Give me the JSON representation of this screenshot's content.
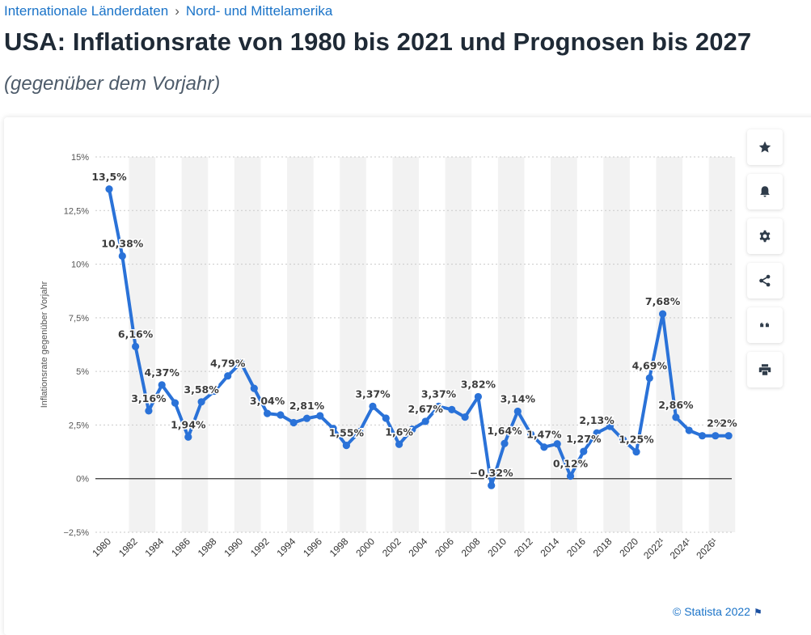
{
  "breadcrumb": {
    "item1": "Internationale Länderdaten",
    "separator": "›",
    "item2": "Nord- und Mittelamerika"
  },
  "title": "USA: Inflationsrate von 1980 bis 2021 und Prognosen bis 2027",
  "subtitle": "(gegenüber dem Vorjahr)",
  "footer": {
    "copyright": "© Statista 2022",
    "flag_icon": "flag-icon"
  },
  "toolbar": [
    "star-icon",
    "bell-icon",
    "gear-icon",
    "share-icon",
    "quote-icon",
    "print-icon"
  ],
  "colors": {
    "line": "#2a72d8",
    "accent": "#1a73c8",
    "band": "#f2f2f2",
    "zero_line": "#333333"
  },
  "chart_data": {
    "type": "line",
    "ylabel": "Inflationsrate gegenüber Vorjahr",
    "ylim": [
      -2.5,
      15
    ],
    "yticks": [
      -2.5,
      0,
      2.5,
      5,
      7.5,
      10,
      12.5,
      15
    ],
    "ytick_labels": [
      "−2,5%",
      "0%",
      "2,5%",
      "5%",
      "7,5%",
      "10%",
      "12,5%",
      "15%"
    ],
    "grid": true,
    "x": [
      1980,
      1981,
      1982,
      1983,
      1984,
      1985,
      1986,
      1987,
      1988,
      1989,
      1990,
      1991,
      1992,
      1993,
      1994,
      1995,
      1996,
      1997,
      1998,
      1999,
      2000,
      2001,
      2002,
      2003,
      2004,
      2005,
      2006,
      2007,
      2008,
      2009,
      2010,
      2011,
      2012,
      2013,
      2014,
      2015,
      2016,
      2017,
      2018,
      2019,
      2020,
      2021,
      2022,
      2023,
      2024,
      2025,
      2026,
      2027
    ],
    "x_tick_labels": [
      "1980",
      "1982",
      "1984",
      "1986",
      "1988",
      "1990",
      "1992",
      "1994",
      "1996",
      "1998",
      "2000",
      "2002",
      "2004",
      "2006",
      "2008",
      "2010",
      "2012",
      "2014",
      "2016",
      "2018",
      "2020",
      "2022¹",
      "2024¹",
      "2026¹"
    ],
    "values": [
      13.5,
      10.38,
      6.16,
      3.16,
      4.37,
      3.53,
      1.94,
      3.58,
      4.08,
      4.79,
      5.4,
      4.21,
      3.04,
      2.97,
      2.61,
      2.81,
      2.93,
      2.34,
      1.55,
      2.19,
      3.37,
      2.82,
      1.6,
      2.3,
      2.67,
      3.37,
      3.22,
      2.87,
      3.82,
      -0.32,
      1.64,
      3.14,
      2.07,
      1.47,
      1.62,
      0.12,
      1.27,
      2.13,
      2.44,
      1.81,
      1.25,
      4.69,
      7.68,
      2.86,
      2.25,
      2.0,
      2.0,
      2.0
    ],
    "data_labels": [
      {
        "year": 1980,
        "text": "13,5%"
      },
      {
        "year": 1981,
        "text": "10,38%"
      },
      {
        "year": 1982,
        "text": "6,16%"
      },
      {
        "year": 1983,
        "text": "3,16%"
      },
      {
        "year": 1984,
        "text": "4,37%"
      },
      {
        "year": 1986,
        "text": "1,94%"
      },
      {
        "year": 1987,
        "text": "3,58%"
      },
      {
        "year": 1989,
        "text": "4,79%"
      },
      {
        "year": 1992,
        "text": "3,04%"
      },
      {
        "year": 1995,
        "text": "2,81%"
      },
      {
        "year": 1998,
        "text": "1,55%"
      },
      {
        "year": 2000,
        "text": "3,37%"
      },
      {
        "year": 2002,
        "text": "1,6%"
      },
      {
        "year": 2004,
        "text": "2,67%"
      },
      {
        "year": 2005,
        "text": "3,37%"
      },
      {
        "year": 2008,
        "text": "3,82%"
      },
      {
        "year": 2009,
        "text": "−0,32%"
      },
      {
        "year": 2010,
        "text": "1,64%"
      },
      {
        "year": 2011,
        "text": "3,14%"
      },
      {
        "year": 2013,
        "text": "1,47%"
      },
      {
        "year": 2015,
        "text": "0,12%"
      },
      {
        "year": 2016,
        "text": "1,27%"
      },
      {
        "year": 2017,
        "text": "2,13%"
      },
      {
        "year": 2020,
        "text": "1,25%"
      },
      {
        "year": 2021,
        "text": "4,69%"
      },
      {
        "year": 2022,
        "text": "7,68%"
      },
      {
        "year": 2023,
        "text": "2,86%"
      },
      {
        "year": 2026,
        "text": "2%"
      },
      {
        "year": 2027,
        "text": "2%"
      }
    ]
  }
}
